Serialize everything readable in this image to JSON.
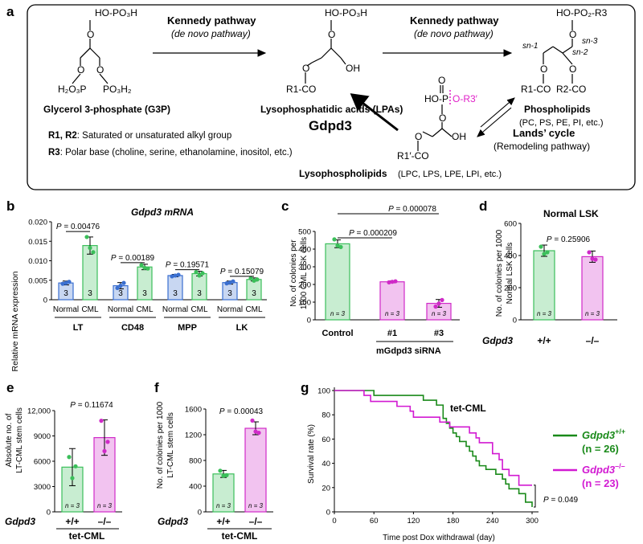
{
  "panel_a": {
    "label": "a",
    "g3p": {
      "top": "HO-PO₃H",
      "left": "H₂O₃P",
      "right": "PO₃H₂",
      "name": "Glycerol 3-phosphate (G3P)"
    },
    "kennedy1": {
      "title": "Kennedy pathway",
      "sub": "(de novo pathway)"
    },
    "kennedy2": {
      "title": "Kennedy pathway",
      "sub": "(de novo pathway)"
    },
    "lpa": {
      "top": "HO-PO₃H",
      "oh": "OH",
      "r1co": "R1-CO",
      "name": "Lysophosphatidic acids (LPAs)"
    },
    "phospholipid": {
      "top": "HO-PO₂-R3",
      "sn1": "sn-1",
      "sn2": "sn-2",
      "sn3": "sn-3",
      "r1co": "R1-CO",
      "r2co": "R2-CO",
      "name": "Phospholipids",
      "examples": "(PC, PS, PE, PI, etc.)"
    },
    "lyso": {
      "ho": "HO-P",
      "or3": "O-R3′",
      "oh": "OH",
      "r1co": "R1′-CO",
      "name": "Lysophospholipids",
      "examples": "(LPC, LPS, LPE, LPI, etc.)"
    },
    "gdpd3": "Gdpd3",
    "lands": {
      "title": "Lands’ cycle",
      "sub": "(Remodeling pathway)"
    },
    "legend": {
      "r12_key": "R1, R2",
      "r12_text": ": Saturated or unsaturated alkyl group",
      "r3_key": "R3",
      "r3_text": ": Polar base (choline, serine, ethanolamine, inositol, etc.)"
    },
    "colors": {
      "accent": "#e020c8"
    }
  },
  "panel_b": {
    "label": "b",
    "title": "Gdpd3 mRNA",
    "ylabel": "Relative mRNA expression",
    "yticks": [
      "0",
      "0.005",
      "0.010",
      "0.015",
      "0.020"
    ],
    "groups": [
      "LT",
      "CD48",
      "MPP",
      "LK"
    ],
    "xcats": [
      "Normal",
      "CML",
      "Normal",
      "CML",
      "Normal",
      "CML",
      "Normal",
      "CML"
    ],
    "pvals": [
      "P = 0.00476",
      "P = 0.00189",
      "P = 0.19571",
      "P = 0.15079"
    ],
    "n_label": "3"
  },
  "panel_c": {
    "label": "c",
    "ylabel1": "No. of colonies per",
    "ylabel2": "1000 CML LSK cells",
    "yticks": [
      "0",
      "100",
      "200",
      "300",
      "400",
      "500"
    ],
    "xcats": [
      "Control",
      "#1",
      "#3"
    ],
    "sub": "mGdpd3  siRNA",
    "pvals": [
      "P = 0.000209",
      "P = 0.000078"
    ],
    "n_label": "n = 3"
  },
  "panel_d": {
    "label": "d",
    "title": "Normal LSK",
    "ylabel1": "No. of colonies per 1000",
    "ylabel2": "Normal  LSK cells",
    "yticks": [
      "0",
      "200",
      "400",
      "600"
    ],
    "gene": "Gdpd3",
    "xcats": [
      "+/+",
      "–/–"
    ],
    "pval": "P = 0.25906",
    "n_label": "n = 3"
  },
  "panel_e": {
    "label": "e",
    "ylabel1": "Absolute no. of",
    "ylabel2": "LT-CML stem cells",
    "yticks": [
      "0",
      "3000",
      "6000",
      "9000",
      "12,000"
    ],
    "gene": "Gdpd3",
    "xcats": [
      "+/+",
      "–/–"
    ],
    "group": "tet-CML",
    "pval": "P = 0.11674",
    "n_label": "n = 3"
  },
  "panel_f": {
    "label": "f",
    "ylabel1": "No. of colonies per 1000",
    "ylabel2": "LT-CML stem cells",
    "yticks": [
      "0",
      "400",
      "800",
      "1200",
      "1600"
    ],
    "gene": "Gdpd3",
    "xcats": [
      "+/+",
      "–/–"
    ],
    "group": "tet-CML",
    "pval": "P = 0.00043",
    "n_label": "n = 3"
  },
  "panel_g": {
    "label": "g",
    "title": "tet-CML",
    "ylabel": "Survival rate (%)",
    "xlabel": "Time post Dox withdrawal (day)",
    "yticks": [
      "0",
      "20",
      "40",
      "60",
      "80",
      "100"
    ],
    "xticks": [
      "0",
      "60",
      "120",
      "180",
      "240",
      "300"
    ],
    "pval": "P = 0.049",
    "legend": [
      {
        "gene": "Gdpd3",
        "sup": "+/+",
        "n": "(n = 26)",
        "color": "#1a8a1a"
      },
      {
        "gene": "Gdpd3",
        "sup": "–/–",
        "n": "(n = 23)",
        "color": "#d21ad2"
      }
    ]
  },
  "chart_data": [
    {
      "type": "bar",
      "panel": "b",
      "title": "Gdpd3 mRNA",
      "ylabel": "Relative mRNA expression",
      "ylim": [
        0,
        0.02
      ],
      "categories": [
        "LT Normal",
        "LT CML",
        "CD48 Normal",
        "CD48 CML",
        "MPP Normal",
        "MPP CML",
        "LK Normal",
        "LK CML"
      ],
      "values": [
        0.0043,
        0.0139,
        0.0036,
        0.0084,
        0.0062,
        0.0067,
        0.0044,
        0.0052
      ],
      "errors": [
        0.0005,
        0.0022,
        0.0008,
        0.0007,
        0.0003,
        0.0006,
        0.0004,
        0.0004
      ],
      "colors": [
        "#3a6fd0",
        "#3bbf5a",
        "#3a6fd0",
        "#3bbf5a",
        "#3a6fd0",
        "#3bbf5a",
        "#3a6fd0",
        "#3bbf5a"
      ],
      "points": [
        [
          0.0041,
          0.0043,
          0.0046
        ],
        [
          0.0161,
          0.0133,
          0.0122
        ],
        [
          0.003,
          0.0036,
          0.0043
        ],
        [
          0.0089,
          0.0082,
          0.008
        ],
        [
          0.006,
          0.0062,
          0.0064
        ],
        [
          0.0071,
          0.0062,
          0.0068
        ],
        [
          0.0042,
          0.0044,
          0.0047
        ],
        [
          0.0055,
          0.0049,
          0.0052
        ]
      ]
    },
    {
      "type": "bar",
      "panel": "c",
      "ylabel": "No. of colonies per 1000 CML LSK cells",
      "ylim": [
        0,
        500
      ],
      "categories": [
        "Control",
        "#1",
        "#3"
      ],
      "values": [
        430,
        215,
        93
      ],
      "errors": [
        22,
        5,
        22
      ],
      "colors": [
        "#3bbf5a",
        "#d02ac8",
        "#d02ac8"
      ],
      "points": [
        [
          455,
          420,
          412
        ],
        [
          212,
          215,
          218
        ],
        [
          75,
          92,
          112
        ]
      ]
    },
    {
      "type": "bar",
      "panel": "d",
      "title": "Normal LSK",
      "ylim": [
        0,
        600
      ],
      "categories": [
        "+/+",
        "–/–"
      ],
      "values": [
        430,
        393
      ],
      "errors": [
        35,
        35
      ],
      "colors": [
        "#3bbf5a",
        "#d02ac8"
      ],
      "points": [
        [
          455,
          410,
          420
        ],
        [
          420,
          380,
          375
        ]
      ]
    },
    {
      "type": "bar",
      "panel": "e",
      "ylim": [
        0,
        12000
      ],
      "categories": [
        "+/+",
        "–/–"
      ],
      "values": [
        5300,
        8800
      ],
      "errors": [
        2200,
        2100
      ],
      "colors": [
        "#3bbf5a",
        "#d02ac8"
      ],
      "points": [
        [
          6500,
          4000,
          5400
        ],
        [
          10800,
          7200,
          8300
        ]
      ]
    },
    {
      "type": "bar",
      "panel": "f",
      "ylim": [
        0,
        1600
      ],
      "categories": [
        "+/+",
        "–/–"
      ],
      "values": [
        590,
        1300
      ],
      "errors": [
        55,
        100
      ],
      "colors": [
        "#3bbf5a",
        "#d02ac8"
      ],
      "points": [
        [
          640,
          560,
          570
        ],
        [
          1420,
          1250,
          1230
        ]
      ]
    },
    {
      "type": "line",
      "panel": "g",
      "title": "tet-CML",
      "xlabel": "Time post Dox withdrawal (day)",
      "ylabel": "Survival rate (%)",
      "xlim": [
        0,
        300
      ],
      "ylim": [
        0,
        100
      ],
      "series": [
        {
          "name": "Gdpd3 +/+ (n = 26)",
          "color": "#1a8a1a",
          "x": [
            0,
            50,
            60,
            125,
            135,
            155,
            165,
            170,
            175,
            180,
            185,
            190,
            200,
            205,
            210,
            215,
            220,
            230,
            245,
            255,
            260,
            265,
            280,
            290,
            300
          ],
          "y": [
            100,
            100,
            96,
            96,
            92,
            88,
            77,
            73,
            69,
            65,
            62,
            58,
            54,
            50,
            46,
            42,
            38,
            35,
            31,
            27,
            23,
            19,
            15,
            8,
            4
          ]
        },
        {
          "name": "Gdpd3 –/– (n = 23)",
          "color": "#d21ad2",
          "x": [
            0,
            35,
            45,
            55,
            95,
            115,
            120,
            160,
            175,
            200,
            205,
            215,
            220,
            240,
            250,
            255,
            265,
            280,
            300
          ],
          "y": [
            100,
            100,
            96,
            91,
            87,
            83,
            78,
            74,
            70,
            70,
            65,
            61,
            57,
            48,
            43,
            35,
            30,
            22,
            22
          ]
        }
      ]
    }
  ]
}
